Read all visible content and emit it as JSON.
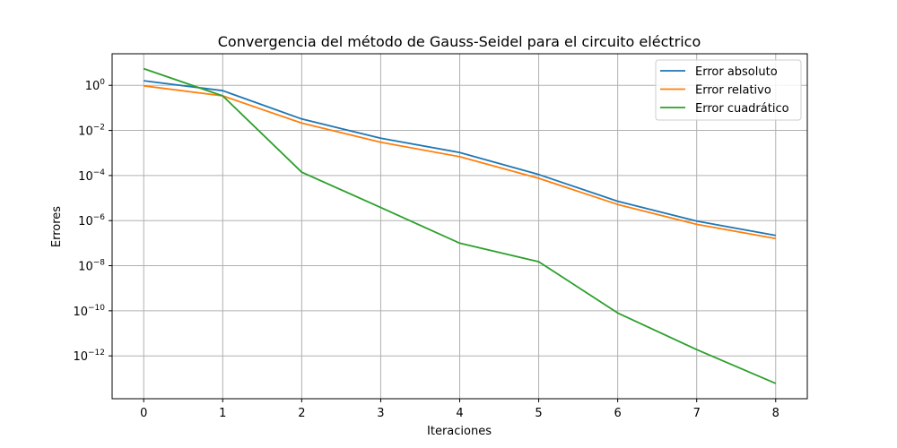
{
  "chart_data": {
    "type": "line",
    "title": "Convergencia del método de Gauss-Seidel para el circuito eléctrico",
    "xlabel": "Iteraciones",
    "ylabel": "Errores",
    "yscale": "log",
    "grid": true,
    "legend_position": "top-right",
    "xlim": [
      -0.4,
      8.4
    ],
    "ylim_log10": [
      -13.9,
      1.4
    ],
    "x": [
      0,
      1,
      2,
      3,
      4,
      5,
      6,
      7,
      8
    ],
    "xticks": [
      0,
      1,
      2,
      3,
      4,
      5,
      6,
      7,
      8
    ],
    "yticks": [
      {
        "exp": 0,
        "base": "10",
        "sup": "0"
      },
      {
        "exp": -2,
        "base": "10",
        "sup": "−2"
      },
      {
        "exp": -4,
        "base": "10",
        "sup": "−4"
      },
      {
        "exp": -6,
        "base": "10",
        "sup": "−6"
      },
      {
        "exp": -8,
        "base": "10",
        "sup": "−8"
      },
      {
        "exp": -10,
        "base": "10",
        "sup": "−10"
      },
      {
        "exp": -12,
        "base": "10",
        "sup": "−12"
      }
    ],
    "series": [
      {
        "name": "Error absoluto",
        "color": "#1f77b4",
        "values": [
          1.6,
          0.58,
          0.032,
          0.0045,
          0.00105,
          0.00011,
          7.2e-06,
          9.5e-07,
          2.2e-07
        ]
      },
      {
        "name": "Error relativo",
        "color": "#ff7f0e",
        "values": [
          0.95,
          0.34,
          0.021,
          0.003,
          0.00068,
          7.5e-05,
          5.2e-06,
          6.8e-07,
          1.6e-07
        ]
      },
      {
        "name": "Error cuadrático",
        "color": "#2ca02c",
        "values": [
          5.5,
          0.34,
          0.00014,
          3.8e-06,
          1e-07,
          1.5e-08,
          8e-11,
          1.9e-12,
          6e-14
        ]
      }
    ]
  }
}
